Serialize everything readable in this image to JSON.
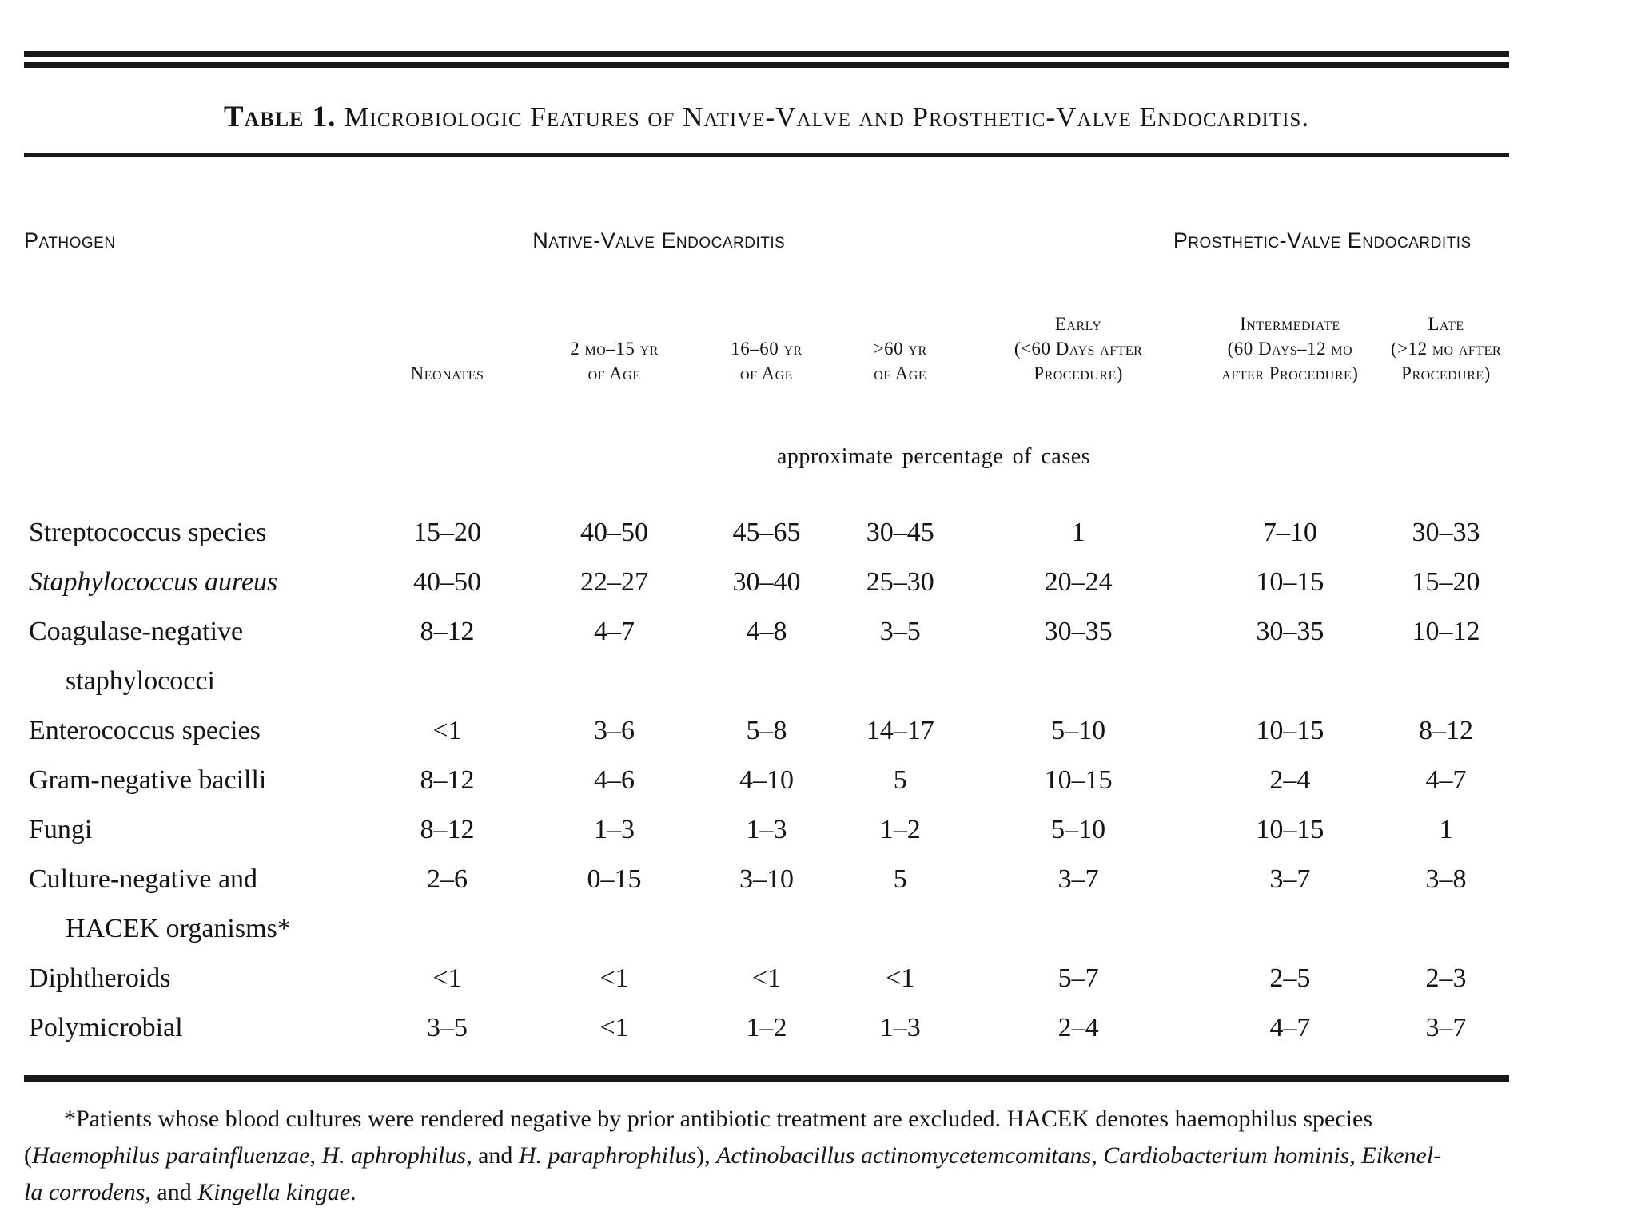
{
  "page": {
    "title_label": "Table 1.",
    "title_text": "Microbiologic Features of Native-Valve and Prosthetic-Valve Endocarditis."
  },
  "table": {
    "pathogen_header": "Pathogen",
    "group_headers": {
      "native": "Native-Valve Endocarditis",
      "prosthetic": "Prosthetic-Valve Endocarditis"
    },
    "column_headers": [
      {
        "lines": [
          "Neonates"
        ]
      },
      {
        "lines": [
          "2 mo–15 yr",
          "of Age"
        ]
      },
      {
        "lines": [
          "16–60 yr",
          "of Age"
        ]
      },
      {
        "lines": [
          ">60 yr",
          "of Age"
        ]
      },
      {
        "lines": [
          "Early",
          "(<60 Days after",
          "Procedure)"
        ]
      },
      {
        "lines": [
          "Intermediate",
          "(60 Days–12 mo",
          "after Procedure)"
        ]
      },
      {
        "lines": [
          "Late",
          "(>12 mo after",
          "Procedure)"
        ]
      }
    ],
    "units_note": "approximate percentage of cases",
    "rows": [
      {
        "name_lines": [
          "Streptococcus species"
        ],
        "italic": false,
        "values": [
          "15–20",
          "40–50",
          "45–65",
          "30–45",
          "1",
          "7–10",
          "30–33"
        ]
      },
      {
        "name_lines": [
          "Staphylococcus aureus"
        ],
        "italic": true,
        "values": [
          "40–50",
          "22–27",
          "30–40",
          "25–30",
          "20–24",
          "10–15",
          "15–20"
        ]
      },
      {
        "name_lines": [
          "Coagulase-negative",
          "staphylococci"
        ],
        "italic": false,
        "values": [
          "8–12",
          "4–7",
          "4–8",
          "3–5",
          "30–35",
          "30–35",
          "10–12"
        ]
      },
      {
        "name_lines": [
          "Enterococcus species"
        ],
        "italic": false,
        "values": [
          "<1",
          "3–6",
          "5–8",
          "14–17",
          "5–10",
          "10–15",
          "8–12"
        ]
      },
      {
        "name_lines": [
          "Gram-negative bacilli"
        ],
        "italic": false,
        "values": [
          "8–12",
          "4–6",
          "4–10",
          "5",
          "10–15",
          "2–4",
          "4–7"
        ]
      },
      {
        "name_lines": [
          "Fungi"
        ],
        "italic": false,
        "values": [
          "8–12",
          "1–3",
          "1–3",
          "1–2",
          "5–10",
          "10–15",
          "1"
        ]
      },
      {
        "name_lines": [
          "Culture-negative and",
          "HACEK organisms*"
        ],
        "italic": false,
        "values": [
          "2–6",
          "0–15",
          "3–10",
          "5",
          "3–7",
          "3–7",
          "3–8"
        ]
      },
      {
        "name_lines": [
          "Diphtheroids"
        ],
        "italic": false,
        "values": [
          "<1",
          "<1",
          "<1",
          "<1",
          "5–7",
          "2–5",
          "2–3"
        ]
      },
      {
        "name_lines": [
          "Polymicrobial"
        ],
        "italic": false,
        "values": [
          "3–5",
          "<1",
          "1–2",
          "1–3",
          "2–4",
          "4–7",
          "3–7"
        ]
      }
    ]
  },
  "footnote": {
    "lines": [
      [
        {
          "t": "*Patients whose blood cultures were rendered negative by prior antibiotic treatment are excluded. HACEK denotes haemophilus species"
        }
      ],
      [
        {
          "t": "("
        },
        {
          "t": "Haemophilus parainfluenzae",
          "i": true
        },
        {
          "t": ", "
        },
        {
          "t": "H. aphrophilus",
          "i": true
        },
        {
          "t": ", and "
        },
        {
          "t": "H. paraphrophilus",
          "i": true
        },
        {
          "t": "), "
        },
        {
          "t": "Actinobacillus actinomycetemcomitans",
          "i": true
        },
        {
          "t": ", "
        },
        {
          "t": "Cardiobacterium hominis",
          "i": true
        },
        {
          "t": ", "
        },
        {
          "t": "Eikenel-",
          "i": true
        }
      ],
      [
        {
          "t": "la corrodens",
          "i": true
        },
        {
          "t": ", and "
        },
        {
          "t": "Kingella kingae",
          "i": true
        },
        {
          "t": "."
        }
      ]
    ]
  }
}
